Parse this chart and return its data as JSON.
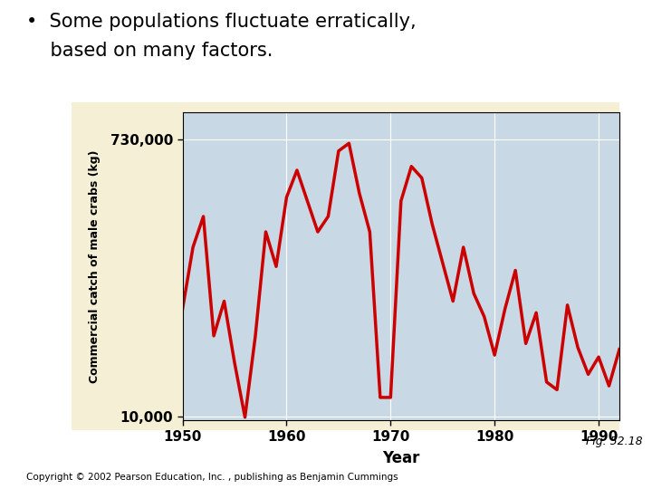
{
  "title_line1": "•  Some populations fluctuate erratically,",
  "title_line2": "    based on many factors.",
  "xlabel": "Year",
  "ylabel": "Commercial catch of male crabs (kg)",
  "yticks": [
    10000,
    730000
  ],
  "ytick_labels": [
    "10,000",
    "730,000"
  ],
  "ylim": [
    0,
    800000
  ],
  "xlim": [
    1950,
    1992
  ],
  "xticks": [
    1950,
    1960,
    1970,
    1980,
    1990
  ],
  "bg_color": "#c8d8e4",
  "outer_bg": "#f5f0d5",
  "fig_bg": "#ffffff",
  "line_color": "#cc0000",
  "line_width": 2.5,
  "fig_label": "Fig. 52.18",
  "copyright": "Copyright © 2002 Pearson Education, Inc. , publishing as Benjamin Cummings",
  "years": [
    1950,
    1951,
    1952,
    1953,
    1954,
    1955,
    1956,
    1957,
    1958,
    1959,
    1960,
    1961,
    1962,
    1963,
    1964,
    1965,
    1966,
    1967,
    1968,
    1969,
    1970,
    1971,
    1972,
    1973,
    1974,
    1975,
    1976,
    1977,
    1978,
    1979,
    1980,
    1981,
    1982,
    1983,
    1984,
    1985,
    1986,
    1987,
    1988,
    1989,
    1990,
    1991,
    1992
  ],
  "values": [
    290000,
    450000,
    530000,
    220000,
    310000,
    150000,
    8500,
    220000,
    490000,
    400000,
    580000,
    650000,
    570000,
    490000,
    530000,
    700000,
    720000,
    590000,
    490000,
    60000,
    60000,
    570000,
    660000,
    630000,
    510000,
    410000,
    310000,
    450000,
    330000,
    270000,
    170000,
    290000,
    390000,
    200000,
    280000,
    100000,
    80000,
    300000,
    190000,
    120000,
    165000,
    90000,
    185000
  ]
}
